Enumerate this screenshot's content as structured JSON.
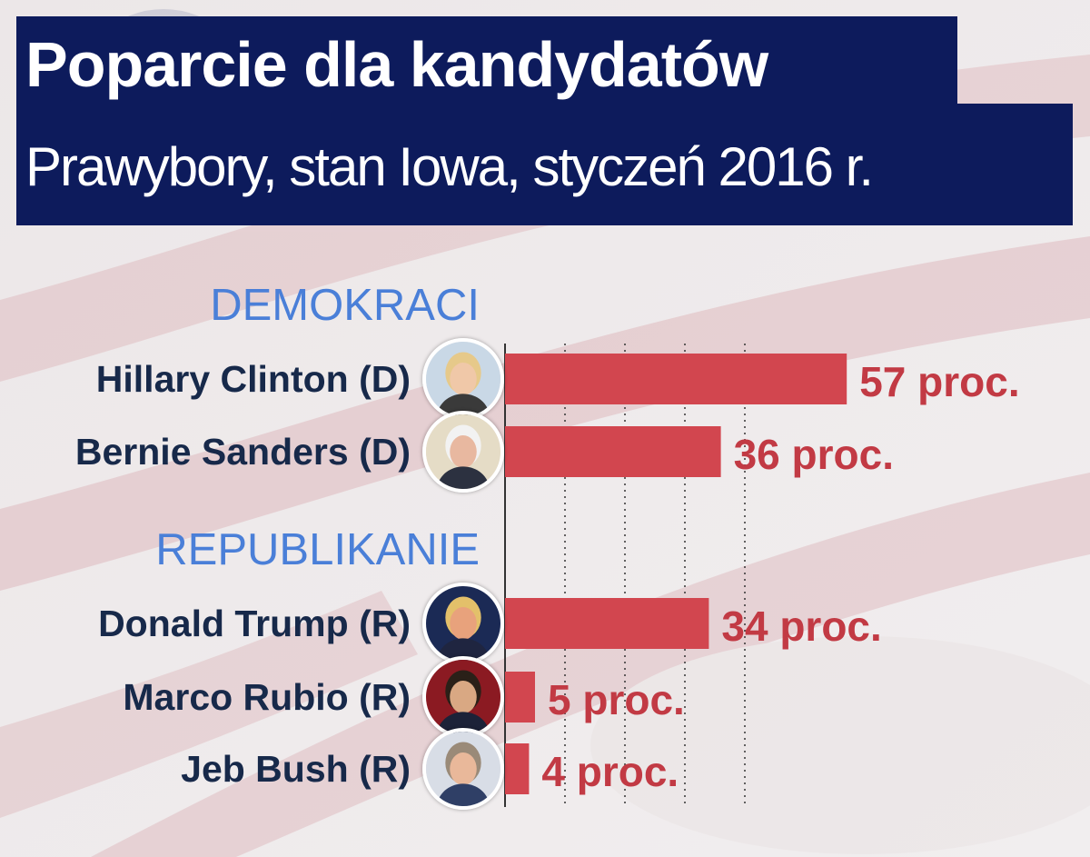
{
  "chart_data": {
    "type": "bar",
    "orientation": "horizontal",
    "title": "Poparcie dla kandydatów",
    "subtitle": "Prawybory, stan Iowa, styczeń 2016 r.",
    "value_suffix": " proc.",
    "xlim": [
      0,
      60
    ],
    "gridlines": [
      0,
      10,
      20,
      30,
      40
    ],
    "grid": true,
    "bar_color": "#d2464f",
    "groups": [
      {
        "label": "DEMOKRACI",
        "candidates": [
          {
            "name": "Hillary Clinton (D)",
            "value": 57,
            "value_label": "57 proc.",
            "photo_icon": "hillary-clinton-portrait-icon"
          },
          {
            "name": "Bernie Sanders (D)",
            "value": 36,
            "value_label": "36 proc.",
            "photo_icon": "bernie-sanders-portrait-icon"
          }
        ]
      },
      {
        "label": "REPUBLIKANIE",
        "candidates": [
          {
            "name": "Donald Trump (R)",
            "value": 34,
            "value_label": "34 proc.",
            "photo_icon": "donald-trump-portrait-icon"
          },
          {
            "name": "Marco Rubio (R)",
            "value": 5,
            "value_label": "5 proc.",
            "photo_icon": "marco-rubio-portrait-icon"
          },
          {
            "name": "Jeb Bush (R)",
            "value": 4,
            "value_label": "4 proc.",
            "photo_icon": "jeb-bush-portrait-icon"
          }
        ]
      }
    ]
  },
  "colors": {
    "title_bg": "#0d1b5c",
    "group_label": "#4a7fd8",
    "name_text": "#17294a",
    "value_text": "#c23a44"
  }
}
